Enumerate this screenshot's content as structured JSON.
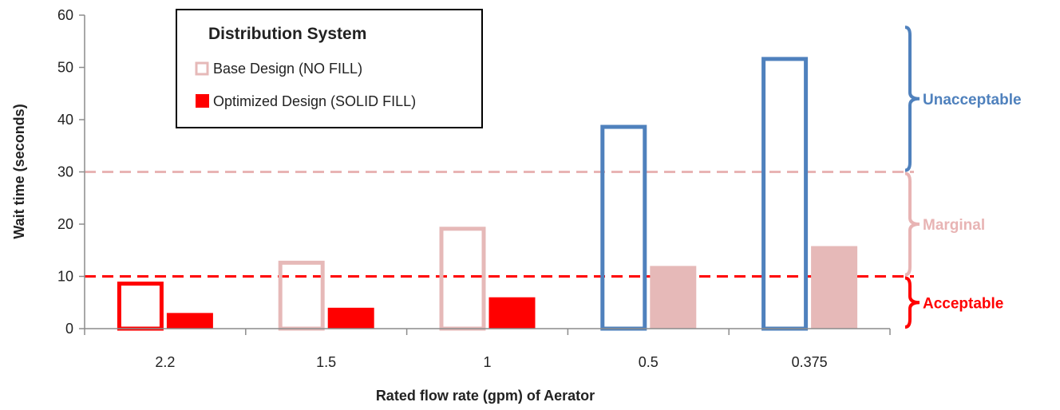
{
  "chart_data": {
    "type": "bar",
    "title": "",
    "xlabel": "Rated flow rate (gpm) of Aerator",
    "ylabel": "Wait time (seconds)",
    "ylim": [
      0,
      60
    ],
    "yticks": [
      0,
      10,
      20,
      30,
      40,
      50,
      60
    ],
    "grid": false,
    "categories": [
      "2.2",
      "1.5",
      "1",
      "0.5",
      "0.375"
    ],
    "series": [
      {
        "name": "Base Design (NO FILL)",
        "fill": "none",
        "values": [
          9,
          13,
          19.5,
          39,
          52
        ]
      },
      {
        "name": "Optimized Design (SOLID FILL)",
        "fill": "solid",
        "values": [
          3,
          4,
          6,
          12,
          15.8
        ]
      }
    ],
    "legend": {
      "title": "Distribution System",
      "placement": "top-left"
    },
    "thresholds": [
      {
        "value": 10,
        "color": "#ff0000",
        "style": "dashed"
      },
      {
        "value": 30,
        "color": "#e8b4b4",
        "style": "dashed"
      }
    ],
    "zones": [
      {
        "label": "Unacceptable",
        "from": 30,
        "to": 58,
        "color": "#4f81bd"
      },
      {
        "label": "Marginal",
        "from": 10,
        "to": 30,
        "color": "#e8b4b4"
      },
      {
        "label": "Acceptable",
        "from": 0,
        "to": 10,
        "color": "#ff0000"
      }
    ],
    "colors": {
      "acceptable": "#ff0000",
      "marginal": "#e6b9b8",
      "unacceptable": "#4f81bd",
      "axis": "#8c8c8c"
    }
  }
}
